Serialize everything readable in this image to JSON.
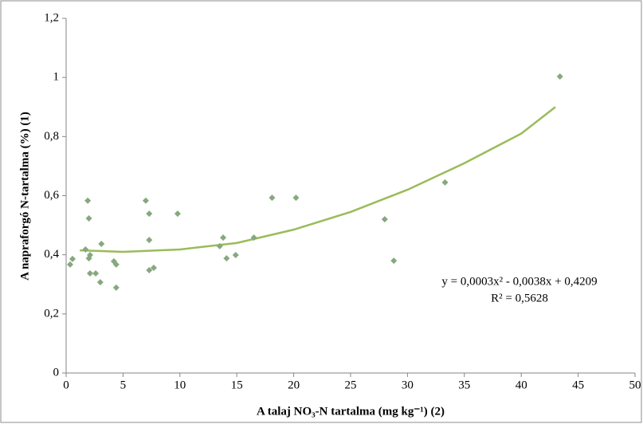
{
  "chart_data": {
    "type": "scatter",
    "x_label": "A talaj NO₃-N tartalma (mg kg⁻¹) (2)",
    "y_label": "A napraforgó N-tartalma (%) (1)",
    "x": [
      0.35,
      0.56,
      1.7,
      1.9,
      2.0,
      2.0,
      2.1,
      2.1,
      2.6,
      3.0,
      3.1,
      4.2,
      4.4,
      4.4,
      7.0,
      7.3,
      7.3,
      7.3,
      7.7,
      9.8,
      13.5,
      13.8,
      14.1,
      14.9,
      16.5,
      18.1,
      20.2,
      28.0,
      28.8,
      33.3,
      43.4
    ],
    "values": [
      0.367,
      0.386,
      0.418,
      0.583,
      0.523,
      0.388,
      0.399,
      0.337,
      0.337,
      0.307,
      0.437,
      0.378,
      0.289,
      0.367,
      0.583,
      0.539,
      0.45,
      0.348,
      0.356,
      0.539,
      0.429,
      0.458,
      0.388,
      0.399,
      0.458,
      0.593,
      0.593,
      0.52,
      0.38,
      0.645,
      1.003
    ],
    "color": "#86a87e",
    "trendline": {
      "x": [
        1.2,
        5,
        10,
        15,
        20,
        25,
        30,
        35,
        40,
        43
      ],
      "values": [
        0.415,
        0.41,
        0.418,
        0.44,
        0.485,
        0.545,
        0.62,
        0.71,
        0.81,
        0.9
      ],
      "color": "#9bbb59"
    },
    "annotation": [
      "y = 0,0003x² - 0,0038x + 0,4209",
      "R² = 0,5628"
    ],
    "xlim": [
      0,
      50
    ],
    "xticks": [
      0,
      5,
      10,
      15,
      20,
      25,
      30,
      35,
      40,
      45,
      50
    ],
    "ylim": [
      0,
      1.2
    ],
    "yticks": [
      0,
      {
        "value": 0.2,
        "label": "0,2"
      },
      {
        "value": 0.4,
        "label": "0,4"
      },
      {
        "value": 0.6,
        "label": "0,6"
      },
      {
        "value": 0.8,
        "label": "0,8"
      },
      1,
      {
        "value": 1.2,
        "label": "1,2"
      }
    ],
    "grid": false
  }
}
